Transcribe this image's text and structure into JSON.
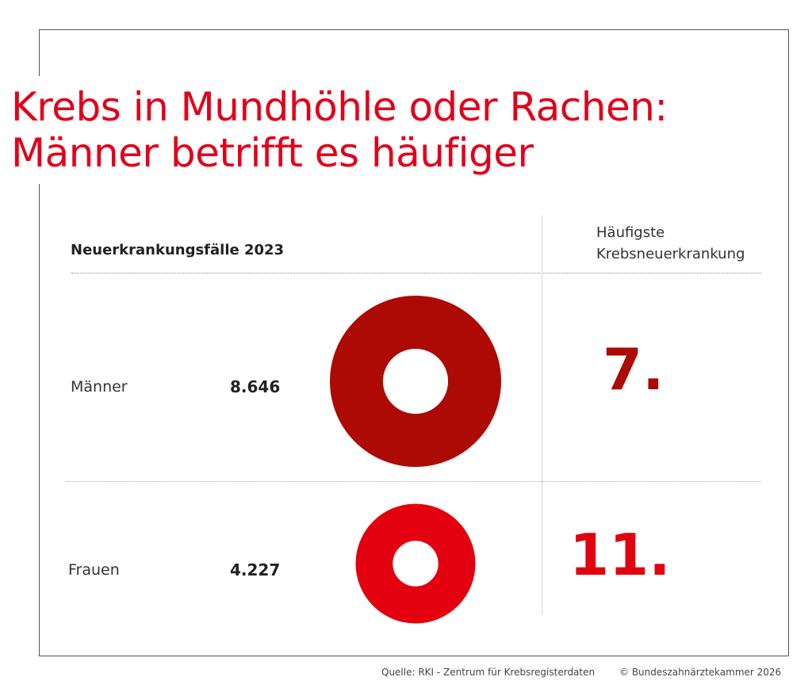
{
  "chart_data": {
    "type": "donut",
    "title": [
      "Krebs in Mundhöhle oder Rachen:",
      "Männer betrifft es häufiger"
    ],
    "column_header_left": "Neuerkrankungsfälle 2023",
    "column_header_right": [
      "Häufigste",
      "Krebsneuerkrankung"
    ],
    "categories": [
      "Männer",
      "Frauen"
    ],
    "values": [
      8646,
      4227
    ],
    "value_labels": [
      "8.646",
      "4.227"
    ],
    "ranks": [
      "7.",
      "11."
    ],
    "colors": [
      "#ad0a05",
      "#e3000f"
    ]
  },
  "footer": {
    "source": "Quelle: RKI - Zentrum für Krebsregisterdaten",
    "copyright": "© Bundeszahnärztekammer 2026"
  }
}
